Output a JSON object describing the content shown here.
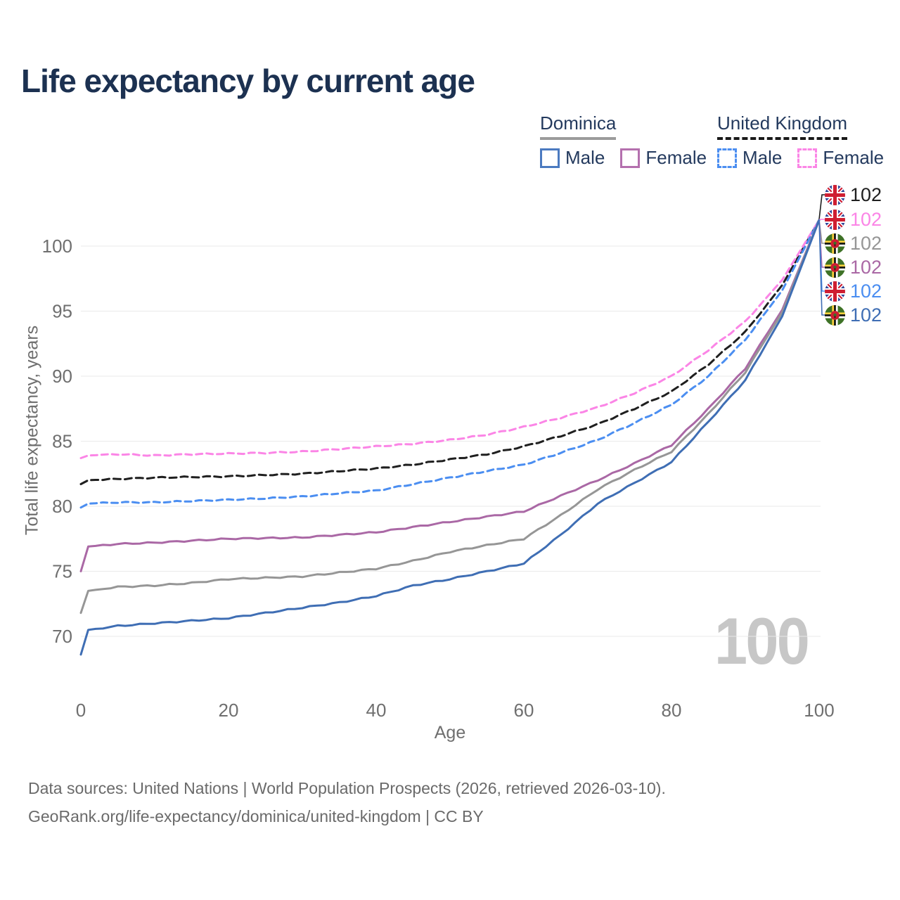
{
  "title": "Life expectancy by current age",
  "legend": {
    "groups": [
      {
        "label": "Dominica",
        "line_style": "solid",
        "underline_color": "#9b9b9b",
        "items": [
          {
            "label": "Male",
            "color": "#4b7ac0"
          },
          {
            "label": "Female",
            "color": "#b470ae"
          }
        ]
      },
      {
        "label": "United Kingdom",
        "line_style": "dashed",
        "underline_color": "#191919",
        "items": [
          {
            "label": "Male",
            "color": "#4b8ef1"
          },
          {
            "label": "Female",
            "color": "#fb85e6"
          }
        ]
      }
    ]
  },
  "axis": {
    "xlabel": "Age",
    "ylabel": "Total life expectancy, years"
  },
  "watermark_age": "100",
  "end_labels": [
    {
      "series": "uk_all",
      "flag": "United Kingdom",
      "value": "102",
      "color": "#1f1f1f"
    },
    {
      "series": "uk_female",
      "flag": "United Kingdom",
      "value": "102",
      "color": "#fb85e6"
    },
    {
      "series": "dm_all",
      "flag": "Dominica",
      "value": "102",
      "color": "#969696"
    },
    {
      "series": "dm_female",
      "flag": "Dominica",
      "value": "102",
      "color": "#aa68a5"
    },
    {
      "series": "uk_male",
      "flag": "United Kingdom",
      "value": "102",
      "color": "#4b8ef1"
    },
    {
      "series": "dm_male",
      "flag": "Dominica",
      "value": "102",
      "color": "#3f6eb4"
    }
  ],
  "footer": {
    "line1": "Data sources: United Nations | World Population Prospects (2026, retrieved 2026-03-10).",
    "line2": "GeoRank.org/life-expectancy/dominica/united-kingdom | CC BY"
  },
  "chart_data": {
    "type": "line",
    "title": "Life expectancy by current age",
    "xlabel": "Age",
    "ylabel": "Total life expectancy, years",
    "xlim": [
      0,
      100
    ],
    "ylim": [
      68,
      102.5
    ],
    "xticks": [
      0,
      20,
      40,
      60,
      80,
      100
    ],
    "yticks": [
      70,
      75,
      80,
      85,
      90,
      95,
      100
    ],
    "grid": true,
    "legend_position": "top-right",
    "x": [
      0,
      1,
      5,
      10,
      15,
      20,
      25,
      30,
      35,
      40,
      45,
      50,
      55,
      60,
      65,
      70,
      75,
      80,
      85,
      90,
      95,
      100
    ],
    "series": [
      {
        "id": "uk_all",
        "name": "United Kingdom — all",
        "color": "#1f1f1f",
        "dash": "10 6",
        "width": 3,
        "values": [
          81.7,
          82.0,
          82.1,
          82.2,
          82.25,
          82.3,
          82.4,
          82.5,
          82.7,
          82.9,
          83.2,
          83.6,
          84.0,
          84.6,
          85.4,
          86.3,
          87.5,
          88.8,
          90.9,
          93.4,
          97.0,
          102
        ]
      },
      {
        "id": "uk_female",
        "name": "United Kingdom — Female",
        "color": "#fb85e6",
        "dash": "9 6",
        "width": 3,
        "values": [
          83.7,
          83.9,
          84.0,
          83.9,
          84.0,
          84.05,
          84.1,
          84.2,
          84.4,
          84.6,
          84.8,
          85.1,
          85.5,
          86.1,
          86.8,
          87.6,
          88.7,
          90.0,
          92.0,
          94.2,
          97.4,
          102
        ]
      },
      {
        "id": "uk_male",
        "name": "United Kingdom — Male",
        "color": "#4b8ef1",
        "dash": "9 6",
        "width": 3,
        "values": [
          79.9,
          80.2,
          80.3,
          80.3,
          80.4,
          80.5,
          80.6,
          80.75,
          81.0,
          81.2,
          81.7,
          82.2,
          82.7,
          83.2,
          84.1,
          85.1,
          86.4,
          87.8,
          90.0,
          92.8,
          96.6,
          102
        ]
      },
      {
        "id": "dm_female",
        "name": "Dominica — Female",
        "color": "#aa68a5",
        "dash": null,
        "width": 3,
        "values": [
          75.0,
          76.9,
          77.1,
          77.2,
          77.35,
          77.5,
          77.55,
          77.6,
          77.8,
          78.0,
          78.4,
          78.8,
          79.2,
          79.6,
          80.8,
          82.0,
          83.3,
          84.7,
          87.5,
          90.6,
          95.1,
          102
        ]
      },
      {
        "id": "dm_all",
        "name": "Dominica — all",
        "color": "#969696",
        "dash": null,
        "width": 3,
        "values": [
          71.8,
          73.5,
          73.8,
          73.9,
          74.1,
          74.4,
          74.5,
          74.6,
          74.9,
          75.2,
          75.8,
          76.5,
          77.0,
          77.5,
          79.3,
          81.3,
          82.8,
          84.2,
          87.1,
          90.3,
          94.9,
          102
        ]
      },
      {
        "id": "dm_male",
        "name": "Dominica — Male",
        "color": "#3f6eb4",
        "dash": null,
        "width": 3,
        "values": [
          68.6,
          70.5,
          70.8,
          71.0,
          71.2,
          71.4,
          71.8,
          72.2,
          72.6,
          73.1,
          73.9,
          74.4,
          75.0,
          75.6,
          77.8,
          80.2,
          81.8,
          83.4,
          86.5,
          89.7,
          94.6,
          102
        ]
      }
    ]
  }
}
